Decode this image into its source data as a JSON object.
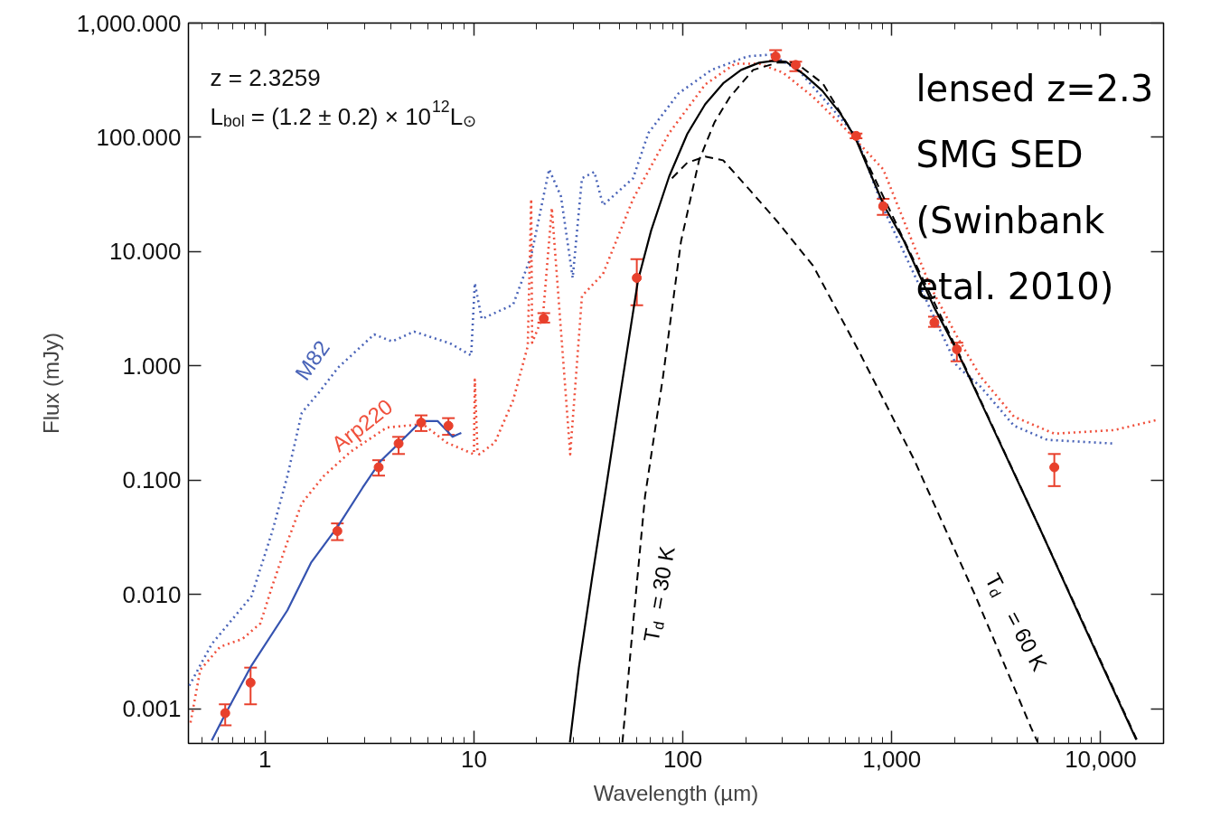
{
  "chart_data": {
    "type": "line",
    "xlabel": "Wavelength (µm)",
    "ylabel": "Flux (mJy)",
    "log": "xy",
    "grid": false,
    "marker": "none",
    "xlim": [
      0.43,
      20000
    ],
    "ylim": [
      0.0005,
      1000
    ],
    "xticks": [
      {
        "value": 0.5,
        "label": null
      },
      {
        "value": 0.6,
        "label": null
      },
      {
        "value": 0.7,
        "label": null
      },
      {
        "value": 0.8,
        "label": null
      },
      {
        "value": 0.9,
        "label": null
      },
      1,
      {
        "value": 2,
        "label": null
      },
      {
        "value": 3,
        "label": null
      },
      {
        "value": 4,
        "label": null
      },
      {
        "value": 5,
        "label": null
      },
      {
        "value": 6,
        "label": null
      },
      {
        "value": 7,
        "label": null
      },
      {
        "value": 8,
        "label": null
      },
      {
        "value": 9,
        "label": null
      },
      10,
      {
        "value": 20,
        "label": null
      },
      {
        "value": 30,
        "label": null
      },
      {
        "value": 40,
        "label": null
      },
      {
        "value": 50,
        "label": null
      },
      {
        "value": 60,
        "label": null
      },
      {
        "value": 70,
        "label": null
      },
      {
        "value": 80,
        "label": null
      },
      {
        "value": 90,
        "label": null
      },
      100,
      {
        "value": 200,
        "label": null
      },
      {
        "value": 300,
        "label": null
      },
      {
        "value": 400,
        "label": null
      },
      {
        "value": 500,
        "label": null
      },
      {
        "value": 600,
        "label": null
      },
      {
        "value": 700,
        "label": null
      },
      {
        "value": 800,
        "label": null
      },
      {
        "value": 900,
        "label": null
      },
      {
        "value": 1000,
        "label": "1,000"
      },
      {
        "value": 2000,
        "label": null
      },
      {
        "value": 3000,
        "label": null
      },
      {
        "value": 4000,
        "label": null
      },
      {
        "value": 5000,
        "label": null
      },
      {
        "value": 6000,
        "label": null
      },
      {
        "value": 7000,
        "label": null
      },
      {
        "value": 8000,
        "label": null
      },
      {
        "value": 9000,
        "label": null
      },
      {
        "value": 10000,
        "label": "10,000"
      }
    ],
    "yticks": [
      0.001,
      {
        "value": 0.01,
        "label": "0.010"
      },
      {
        "value": 0.1,
        "label": "0.100"
      },
      {
        "value": 1,
        "label": "1.000"
      },
      {
        "value": 10,
        "label": "10.000"
      },
      {
        "value": 100,
        "label": "100.000"
      },
      {
        "value": 1000,
        "label": "1,000.000"
      }
    ],
    "annotations": [
      "z = 2.3259",
      "L$_{bol}$ = (1.2 ± 0.2) × 10$^{12}$L$_{⊙}$",
      "lensed z=2.3\nSMG SED\n(Swinbank\netal. 2010)"
    ],
    "series": [
      {
        "name": "M82",
        "line_style": "dotted",
        "color": "#4a64b8",
        "x": [
          0.434,
          0.556,
          0.862,
          1.08,
          1.28,
          1.5,
          1.83,
          2.24,
          3.33,
          4.06,
          5.17,
          7.68,
          9.7,
          10.1,
          10.9,
          15.4,
          18.8,
          22.9,
          26.1,
          29.7,
          32.9,
          37.7,
          41.5,
          57.8,
          68.4,
          95.3,
          137,
          204,
          265,
          357,
          675,
          910,
          2050,
          2660,
          3850,
          5550,
          11420
        ],
        "values": [
          0.0016,
          0.0037,
          0.0097,
          0.035,
          0.109,
          0.39,
          0.6,
          0.97,
          1.89,
          1.64,
          2.0,
          1.58,
          1.24,
          5.3,
          2.58,
          3.44,
          9.2,
          52.6,
          30.5,
          5.9,
          43.9,
          49.9,
          25.5,
          43.9,
          109,
          242,
          389,
          511,
          530,
          389,
          103,
          24.1,
          1.0,
          0.66,
          0.3,
          0.226,
          0.21
        ]
      },
      {
        "name": "Arp220",
        "line_style": "dotted",
        "color": "#f0503c",
        "x": [
          0.44,
          0.49,
          0.61,
          0.78,
          0.95,
          1.08,
          1.28,
          1.5,
          1.91,
          2.57,
          3.83,
          5.7,
          7.4,
          10.0,
          10.1,
          10.4,
          10.6,
          12.6,
          15.4,
          18.1,
          18.8,
          19.0,
          21.4,
          23.6,
          28.9,
          32.9,
          41.5,
          57.8,
          86,
          128,
          178,
          232,
          302,
          421,
          587,
          910,
          1530,
          2050,
          2660,
          3850,
          6000,
          11580,
          18600
        ],
        "values": [
          0.00076,
          0.0022,
          0.0035,
          0.0041,
          0.0056,
          0.0117,
          0.029,
          0.063,
          0.109,
          0.178,
          0.29,
          0.31,
          0.214,
          0.169,
          0.76,
          0.18,
          0.169,
          0.214,
          0.5,
          1.49,
          28.9,
          1.6,
          2.72,
          24.1,
          0.169,
          4.1,
          6.4,
          28.9,
          109,
          290,
          441,
          441,
          368,
          225,
          124,
          52.6,
          4.96,
          1.82,
          0.81,
          0.36,
          0.256,
          0.275,
          0.337
        ]
      },
      {
        "line_style": "solid",
        "color": "#3553b0",
        "x": [
          0.556,
          0.639,
          0.862,
          1.28,
          1.66,
          2.24,
          2.93,
          3.57,
          4.36,
          5.6,
          6.7,
          7.9,
          8.7
        ],
        "values": [
          0.00053,
          0.00087,
          0.0024,
          0.0073,
          0.019,
          0.04,
          0.086,
          0.147,
          0.21,
          0.33,
          0.33,
          0.24,
          0.26
        ]
      },
      {
        "line_style": "solid",
        "color": "#000000",
        "x": [
          28.8,
          31.8,
          36.8,
          42.9,
          49.9,
          61,
          70.5,
          86,
          105,
          128,
          156,
          190,
          232,
          270,
          312,
          380,
          465,
          566,
          668,
          916,
          1137,
          1590,
          2040,
          3070,
          5080,
          8300,
          14800
        ],
        "values": [
          0.00051,
          0.0023,
          0.0141,
          0.086,
          0.53,
          5.6,
          15.3,
          45.5,
          107,
          195,
          297,
          389,
          450,
          466,
          458,
          355,
          256,
          163,
          100,
          25.5,
          12.7,
          3.3,
          1.39,
          0.28,
          0.039,
          0.0054,
          0.00054
        ]
      },
      {
        "name": "T$_{d}$ = 30 K",
        "line_style": "dashed",
        "color": "#000000",
        "x": [
          51.4,
          57.8,
          65.9,
          80.4,
          98,
          119.6,
          141.6,
          167.8,
          217,
          284,
          347,
          468,
          668,
          1143,
          2056,
          5080,
          14890
        ],
        "values": [
          0.00051,
          0.0056,
          0.072,
          0.81,
          12.3,
          63,
          135,
          225,
          389,
          450,
          450,
          296,
          100,
          12.7,
          1.39,
          0.039,
          0.00054
        ]
      },
      {
        "name": "T$_{d}$ = 60 K",
        "line_style": "dashed",
        "color": "#000000",
        "x": [
          88.7,
          105,
          128,
          156,
          209,
          283,
          421,
          700,
          1281,
          2518,
          4640,
          5000
        ],
        "values": [
          43.9,
          60,
          68,
          63,
          34.7,
          18.4,
          7.5,
          1.32,
          0.151,
          0.0097,
          0.00069,
          0.00051
        ]
      },
      {
        "type": "scatter",
        "marker": "circle",
        "color": "#e8402c",
        "x": [
          0.645,
          0.853,
          2.22,
          3.5,
          4.36,
          5.59,
          7.55,
          21.6,
          60.2,
          278,
          347,
          675,
          910,
          1600,
          2050,
          6000
        ],
        "values": [
          0.00092,
          0.0017,
          0.036,
          0.13,
          0.21,
          0.32,
          0.3,
          2.6,
          5.9,
          510,
          430,
          103,
          25,
          2.4,
          1.4,
          0.13
        ],
        "errors": [
          [
            0.00072,
            0.0011
          ],
          [
            0.0011,
            0.0023
          ],
          [
            0.03,
            0.042
          ],
          [
            0.11,
            0.15
          ],
          [
            0.17,
            0.24
          ],
          [
            0.27,
            0.37
          ],
          [
            0.25,
            0.35
          ],
          [
            2.4,
            2.9
          ],
          [
            3.4,
            8.6
          ],
          [
            470,
            580
          ],
          [
            380,
            460
          ],
          [
            98,
            108
          ],
          [
            21,
            29
          ],
          [
            2.2,
            2.7
          ],
          [
            1.1,
            1.6
          ],
          [
            0.089,
            0.17
          ]
        ]
      }
    ]
  }
}
